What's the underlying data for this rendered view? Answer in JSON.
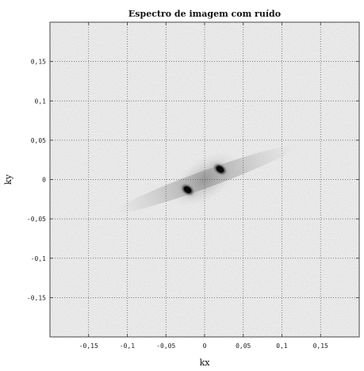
{
  "chart_data": {
    "type": "heatmap",
    "title": "Espectro de imagem com ruído",
    "xlabel": "kx",
    "ylabel": "ky",
    "xlim": [
      -0.2,
      0.2
    ],
    "ylim": [
      -0.2,
      0.2
    ],
    "grid": true,
    "grid_style": "dotted",
    "colormap": "gray_r",
    "background_color": "#ececec",
    "peak_color": "#050505",
    "x_ticks": [
      {
        "value": -0.15,
        "label": "-0,15"
      },
      {
        "value": -0.1,
        "label": "-0,1"
      },
      {
        "value": -0.05,
        "label": "-0,05"
      },
      {
        "value": 0,
        "label": "0"
      },
      {
        "value": 0.05,
        "label": "0,05"
      },
      {
        "value": 0.1,
        "label": "0,1"
      },
      {
        "value": 0.15,
        "label": "0,15"
      }
    ],
    "y_ticks": [
      {
        "value": 0.15,
        "label": "0,15"
      },
      {
        "value": 0.1,
        "label": "0,1"
      },
      {
        "value": 0.05,
        "label": "0,05"
      },
      {
        "value": 0,
        "label": "0"
      },
      {
        "value": -0.05,
        "label": "-0,05"
      },
      {
        "value": -0.1,
        "label": "-0,1"
      },
      {
        "value": -0.15,
        "label": "-0,15"
      }
    ],
    "peaks": [
      {
        "kx": 0.02,
        "ky": 0.013,
        "intensity": 1.0
      },
      {
        "kx": -0.022,
        "ky": -0.013,
        "intensity": 1.0
      }
    ],
    "streak_angle_deg": 20
  }
}
